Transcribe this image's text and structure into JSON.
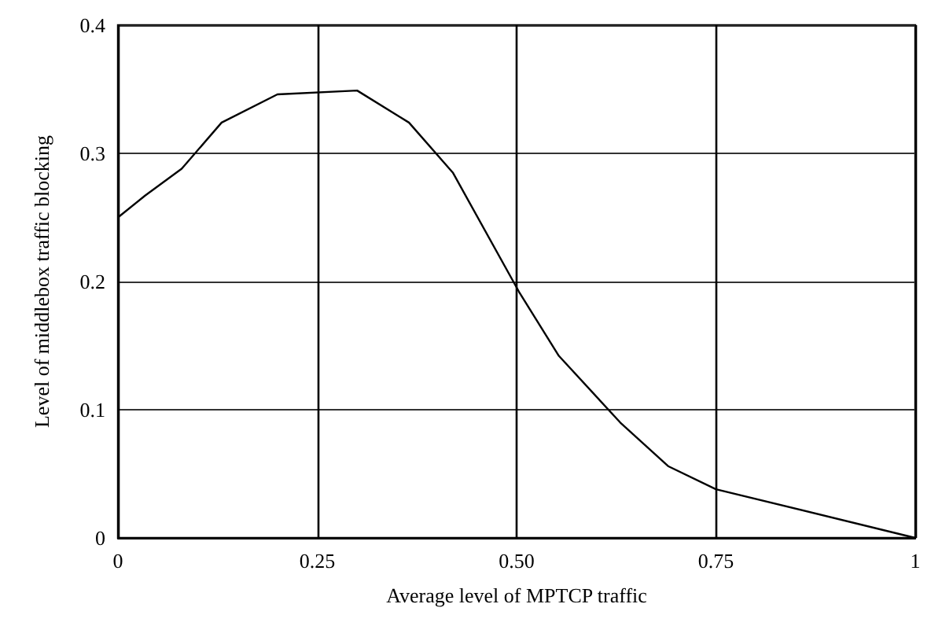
{
  "chart_data": {
    "type": "line",
    "xlabel": "Average level of MPTCP traffic",
    "ylabel": "Level of middlebox traffic blocking",
    "xlim": [
      0,
      1
    ],
    "xticks": [
      0,
      {
        "value": 0.25,
        "label": "0.25"
      },
      {
        "value": 0.5,
        "label": "0.50"
      },
      {
        "value": 0.75,
        "label": "0.75"
      },
      1
    ],
    "ylim": [
      0,
      0.4
    ],
    "yticks": [
      0,
      0.1,
      0.2,
      0.3,
      0.4
    ],
    "grid": true,
    "marker": "none",
    "line_style": "solid",
    "series": [
      {
        "color": "#000000",
        "x": [
          0,
          0.034,
          0.08,
          0.13,
          0.2,
          0.3,
          0.365,
          0.42,
          0.503,
          0.553,
          0.63,
          0.69,
          0.75,
          1
        ],
        "values": [
          0.25,
          0.267,
          0.288,
          0.324,
          0.346,
          0.349,
          0.324,
          0.285,
          0.192,
          0.142,
          0.09,
          0.056,
          0.038,
          0
        ]
      }
    ]
  }
}
